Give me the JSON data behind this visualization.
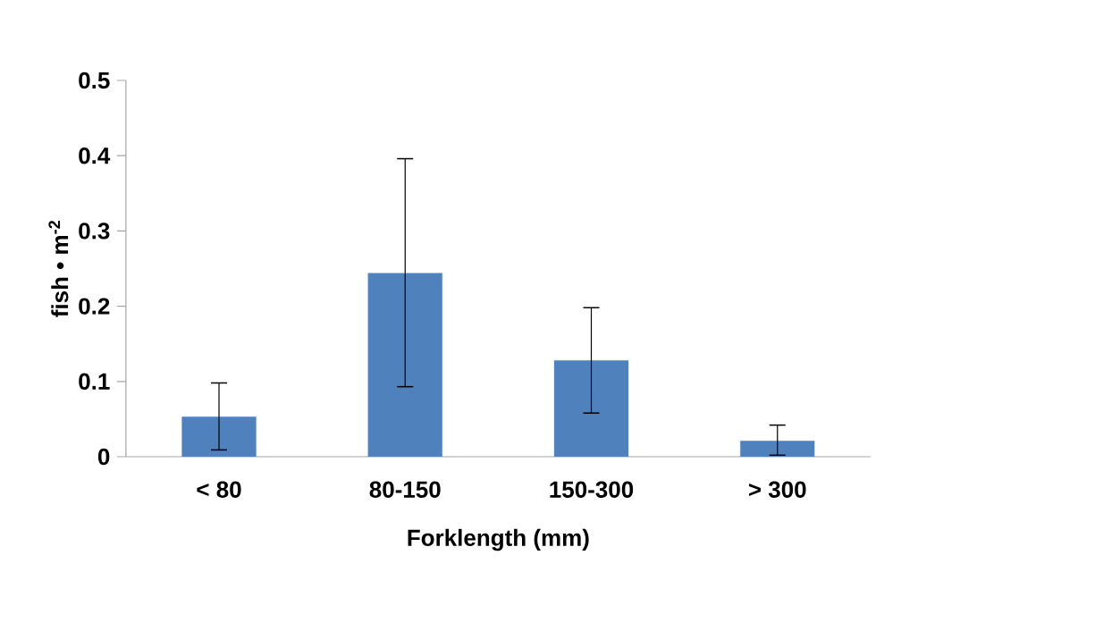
{
  "chart_data": {
    "type": "bar",
    "xlabel": "Forklength (mm)",
    "ylabel": "fish • m$^{-2}$",
    "categories": [
      "< 80",
      "80-150",
      "150-300",
      "> 300"
    ],
    "values": [
      0.053,
      0.244,
      0.128,
      0.021
    ],
    "errors": [
      [
        0.009,
        0.098
      ],
      [
        0.093,
        0.396
      ],
      [
        0.058,
        0.198
      ],
      [
        0.002,
        0.042
      ]
    ],
    "color": "#4f81bd",
    "ylim": [
      0,
      0.5
    ],
    "yticks": [
      0,
      0.1,
      0.2,
      0.3,
      0.4,
      0.5
    ],
    "grid": false
  }
}
